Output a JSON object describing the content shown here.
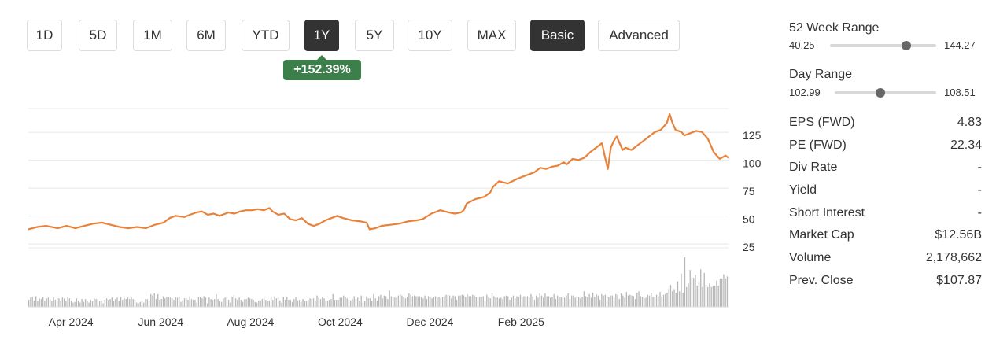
{
  "toolbar": {
    "periods": [
      "1D",
      "5D",
      "1M",
      "6M",
      "YTD",
      "1Y",
      "5Y",
      "10Y",
      "MAX"
    ],
    "selected_period": "1Y",
    "modes": [
      "Basic",
      "Advanced"
    ],
    "selected_mode": "Basic"
  },
  "change_badge": "+152.39%",
  "colors": {
    "line": "#e8823a",
    "volume": "#b8b8b8",
    "badge": "#3d7f4b",
    "active_button": "#333333"
  },
  "chart_data": {
    "type": "line",
    "y_ticks": [
      125,
      100,
      75,
      50,
      25
    ],
    "ylim": [
      0,
      150
    ],
    "x_ticks": [
      "Apr 2024",
      "Jun 2024",
      "Aug 2024",
      "Oct 2024",
      "Dec 2024",
      "Feb 2025"
    ],
    "x_tick_days": [
      29,
      90,
      151,
      212,
      273,
      335
    ],
    "grid": true,
    "series": [
      {
        "points": [
          [
            0,
            41
          ],
          [
            6,
            43
          ],
          [
            12,
            44
          ],
          [
            20,
            42
          ],
          [
            26,
            44
          ],
          [
            32,
            42
          ],
          [
            38,
            44
          ],
          [
            44,
            46
          ],
          [
            50,
            47
          ],
          [
            56,
            45
          ],
          [
            62,
            43
          ],
          [
            68,
            42
          ],
          [
            74,
            43
          ],
          [
            80,
            42
          ],
          [
            86,
            45
          ],
          [
            92,
            47
          ],
          [
            96,
            51
          ],
          [
            100,
            53
          ],
          [
            106,
            52
          ],
          [
            110,
            54
          ],
          [
            114,
            56
          ],
          [
            118,
            57
          ],
          [
            122,
            54
          ],
          [
            126,
            55
          ],
          [
            130,
            53
          ],
          [
            136,
            56
          ],
          [
            140,
            55
          ],
          [
            144,
            57
          ],
          [
            148,
            58
          ],
          [
            152,
            58
          ],
          [
            156,
            59
          ],
          [
            160,
            58
          ],
          [
            164,
            60
          ],
          [
            166,
            57
          ],
          [
            170,
            54
          ],
          [
            174,
            55
          ],
          [
            178,
            50
          ],
          [
            182,
            49
          ],
          [
            186,
            51
          ],
          [
            190,
            46
          ],
          [
            194,
            44
          ],
          [
            198,
            46
          ],
          [
            202,
            49
          ],
          [
            206,
            51
          ],
          [
            210,
            53
          ],
          [
            214,
            51
          ],
          [
            220,
            49
          ],
          [
            226,
            48
          ],
          [
            230,
            47
          ],
          [
            232,
            41
          ],
          [
            236,
            42
          ],
          [
            240,
            44
          ],
          [
            246,
            45
          ],
          [
            252,
            46
          ],
          [
            258,
            48
          ],
          [
            264,
            49
          ],
          [
            268,
            50
          ],
          [
            274,
            55
          ],
          [
            280,
            58
          ],
          [
            286,
            56
          ],
          [
            290,
            55
          ],
          [
            294,
            56
          ],
          [
            296,
            58
          ],
          [
            298,
            64
          ],
          [
            304,
            68
          ],
          [
            310,
            70
          ],
          [
            314,
            74
          ],
          [
            316,
            79
          ],
          [
            320,
            84
          ],
          [
            326,
            82
          ],
          [
            332,
            86
          ],
          [
            336,
            88
          ],
          [
            340,
            90
          ],
          [
            344,
            92
          ],
          [
            348,
            96
          ],
          [
            352,
            95
          ],
          [
            356,
            97
          ],
          [
            360,
            98
          ],
          [
            364,
            101
          ],
          [
            366,
            99
          ],
          [
            370,
            104
          ],
          [
            374,
            103
          ],
          [
            378,
            105
          ],
          [
            382,
            110
          ],
          [
            386,
            114
          ],
          [
            390,
            118
          ],
          [
            392,
            106
          ],
          [
            394,
            95
          ],
          [
            396,
            114
          ],
          [
            398,
            120
          ],
          [
            400,
            124
          ],
          [
            402,
            118
          ],
          [
            404,
            112
          ],
          [
            406,
            114
          ],
          [
            410,
            112
          ],
          [
            414,
            116
          ],
          [
            418,
            120
          ],
          [
            422,
            124
          ],
          [
            426,
            128
          ],
          [
            430,
            130
          ],
          [
            434,
            136
          ],
          [
            436,
            144
          ],
          [
            438,
            136
          ],
          [
            440,
            130
          ],
          [
            444,
            128
          ],
          [
            446,
            125
          ],
          [
            450,
            127
          ],
          [
            454,
            129
          ],
          [
            458,
            128
          ],
          [
            462,
            122
          ],
          [
            466,
            110
          ],
          [
            470,
            104
          ],
          [
            474,
            107
          ],
          [
            476,
            105
          ]
        ]
      }
    ],
    "volume": [
      10,
      13,
      14,
      9,
      15,
      8,
      12,
      11,
      14,
      9,
      12,
      13,
      11,
      8,
      13,
      10,
      12,
      12,
      8,
      13,
      12,
      8,
      14,
      12,
      9,
      6,
      7,
      12,
      9,
      6,
      11,
      7,
      11,
      8,
      6,
      10,
      8,
      12,
      11,
      11,
      8,
      9,
      5,
      10,
      12,
      10,
      11,
      13,
      8,
      11,
      13,
      8,
      14,
      10,
      12,
      11,
      13,
      11,
      13,
      11,
      10,
      6,
      5,
      7,
      9,
      6,
      11,
      11,
      8,
      18,
      16,
      19,
      11,
      18,
      10,
      11,
      15,
      12,
      14,
      14,
      13,
      12,
      10,
      14,
      13,
      14,
      7,
      9,
      12,
      12,
      10,
      15,
      11,
      10,
      10,
      6,
      14,
      14,
      12,
      15,
      13,
      5,
      13,
      11,
      10,
      11,
      18,
      11,
      8,
      7,
      12,
      13,
      14,
      10,
      6,
      14,
      16,
      12,
      10,
      13,
      10,
      7,
      11,
      11,
      13,
      12,
      11,
      10,
      7,
      6,
      9,
      9,
      11,
      12,
      10,
      8,
      9,
      13,
      10,
      15,
      12,
      13,
      9,
      6,
      14,
      10,
      14,
      10,
      10,
      7,
      11,
      14,
      9,
      10,
      7,
      11,
      8,
      8,
      10,
      12,
      11,
      12,
      8,
      16,
      13,
      11,
      14,
      12,
      9,
      9,
      10,
      11,
      18,
      10,
      10,
      10,
      13,
      13,
      16,
      14,
      12,
      10,
      9,
      11,
      15,
      11,
      13,
      9,
      16,
      6,
      8,
      15,
      12,
      12,
      8,
      18,
      12,
      9,
      15,
      17,
      12,
      16,
      15,
      11,
      23,
      15,
      14,
      13,
      13,
      16,
      18,
      16,
      14,
      12,
      14,
      19,
      17,
      15,
      16,
      15,
      15,
      15,
      14,
      12,
      16,
      11,
      15,
      14,
      12,
      14,
      15,
      13,
      14,
      12,
      14,
      15,
      17,
      16,
      16,
      12,
      16,
      15,
      10,
      16,
      16,
      17,
      16,
      14,
      18,
      15,
      15,
      17,
      16,
      14,
      13,
      14,
      14,
      15,
      9,
      17,
      13,
      12,
      20,
      15,
      13,
      13,
      12,
      13,
      11,
      15,
      16,
      15,
      10,
      13,
      16,
      12,
      15,
      14,
      17,
      13,
      15,
      15,
      15,
      13,
      18,
      15,
      10,
      16,
      13,
      19,
      16,
      13,
      19,
      15,
      15,
      13,
      14,
      18,
      11,
      16,
      14,
      14,
      13,
      13,
      16,
      19,
      11,
      16,
      16,
      13,
      15,
      14,
      12,
      14,
      22,
      15,
      14,
      18,
      13,
      20,
      14,
      18,
      16,
      10,
      18,
      16,
      17,
      15,
      14,
      16,
      16,
      13,
      18,
      17,
      11,
      19,
      16,
      13,
      21,
      16,
      17,
      16,
      15,
      11,
      20,
      22,
      15,
      14,
      12,
      13,
      17,
      16,
      20,
      14,
      14,
      17,
      15,
      21,
      15,
      17,
      18,
      20,
      26,
      31,
      22,
      25,
      20,
      36,
      22,
      47,
      20,
      70,
      28,
      33,
      52,
      42,
      41,
      45,
      30,
      36,
      53,
      28,
      48,
      31,
      28,
      33,
      28,
      30,
      30,
      37,
      30,
      40,
      40,
      46,
      40,
      43
    ]
  },
  "stats": {
    "week52": {
      "label": "52 Week Range",
      "low": "40.25",
      "high": "144.27",
      "position": 0.72
    },
    "day": {
      "label": "Day Range",
      "low": "102.99",
      "high": "108.51",
      "position": 0.45
    },
    "rows": [
      {
        "label": "EPS (FWD)",
        "value": "4.83"
      },
      {
        "label": "PE (FWD)",
        "value": "22.34"
      },
      {
        "label": "Div Rate",
        "value": "-"
      },
      {
        "label": "Yield",
        "value": "-"
      },
      {
        "label": "Short Interest",
        "value": "-"
      },
      {
        "label": "Market Cap",
        "value": "$12.56B"
      },
      {
        "label": "Volume",
        "value": "2,178,662"
      },
      {
        "label": "Prev. Close",
        "value": "$107.87"
      }
    ]
  }
}
